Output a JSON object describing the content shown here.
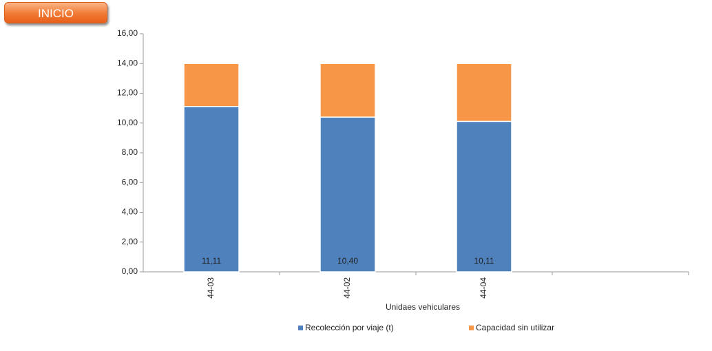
{
  "button": {
    "label": "INICIO"
  },
  "chart_data": {
    "type": "stacked_bar",
    "x_label": "Unidaes vehiculares",
    "categories": [
      "44-03",
      "44-02",
      "44-04",
      null
    ],
    "series": [
      {
        "name": "Recolección por viaje (t)",
        "color": "#4f81bd",
        "values": [
          11.11,
          10.4,
          10.11,
          null
        ],
        "value_labels": [
          "11,11",
          "10,40",
          "10,11",
          null
        ]
      },
      {
        "name": "Capacidad sin utilizar",
        "color": "#f79646",
        "values": [
          2.89,
          3.6,
          3.89,
          null
        ]
      }
    ],
    "ylim": [
      0,
      16
    ],
    "yticks": [
      {
        "value": 0,
        "label": "0,00"
      },
      {
        "value": 2,
        "label": "2,00"
      },
      {
        "value": 4,
        "label": "4,00"
      },
      {
        "value": 6,
        "label": "6,00"
      },
      {
        "value": 8,
        "label": "8,00"
      },
      {
        "value": 10,
        "label": "10,00"
      },
      {
        "value": 12,
        "label": "12,00"
      },
      {
        "value": 14,
        "label": "14,00"
      },
      {
        "value": 16,
        "label": "16,00"
      }
    ],
    "grid": false,
    "legend": "bottom"
  }
}
